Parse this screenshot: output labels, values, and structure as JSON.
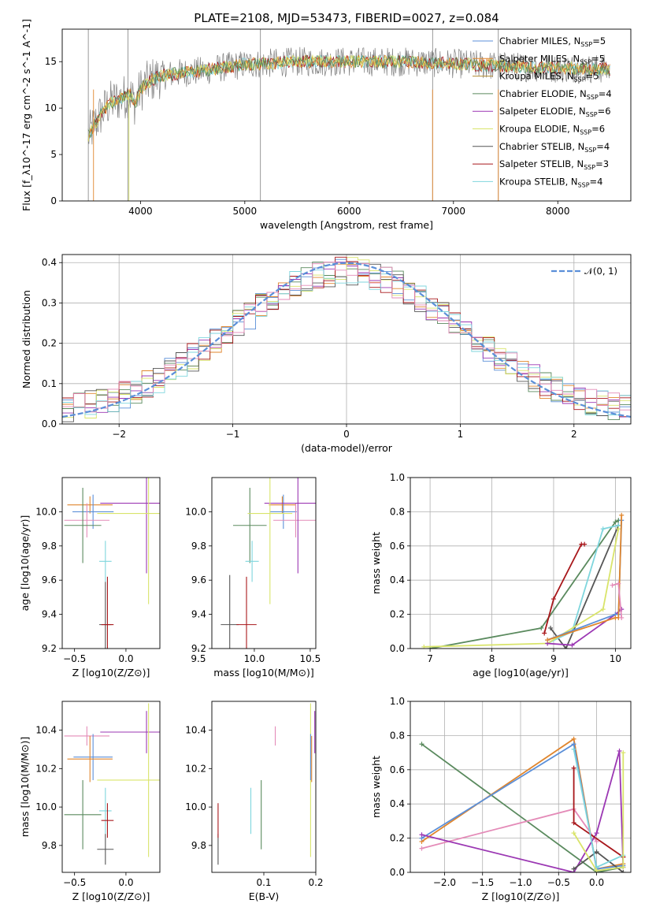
{
  "page_title": "PLATE=2108, MJD=53473, FIBERID=0027, z=0.084",
  "series_colors": {
    "Chabrier MILES": "#5b8fd8",
    "Salpeter MILES": "#e0862e",
    "Kroupa MILES": "#b08930",
    "Chabrier ELODIE": "#5a8a5e",
    "Salpeter ELODIE": "#9b37b3",
    "Kroupa ELODIE": "#d9e46a",
    "Chabrier STELIB": "#555555",
    "Salpeter STELIB": "#a8171b",
    "Kroupa STELIB": "#7fd6dd",
    "pink": "#e48bb8",
    "data": "#808080",
    "normal_curve": "#5b8fd8"
  },
  "chart_data": [
    {
      "id": "spectrum",
      "type": "line",
      "title": "PLATE=2108, MJD=53473, FIBERID=0027, z=0.084",
      "xlabel": "wavelength [Angstrom, rest frame]",
      "ylabel": "Flux [f_λ10^-17 erg cm^-2 s^-1 A^-1]",
      "xlim": [
        3250,
        8700
      ],
      "ylim": [
        0,
        18.5
      ],
      "xticks": [
        "4000",
        "5000",
        "6000",
        "7000",
        "8000"
      ],
      "yticks": [
        "0",
        "5",
        "10",
        "15"
      ],
      "grid": false,
      "legend_position": "right",
      "legend": [
        {
          "name": "Chabrier MILES",
          "nssp": "5"
        },
        {
          "name": "Salpeter MILES",
          "nssp": "5"
        },
        {
          "name": "Kroupa MILES",
          "nssp": "5"
        },
        {
          "name": "Chabrier ELODIE",
          "nssp": "4"
        },
        {
          "name": "Salpeter ELODIE",
          "nssp": "6"
        },
        {
          "name": "Kroupa ELODIE",
          "nssp": "6"
        },
        {
          "name": "Chabrier STELIB",
          "nssp": "4"
        },
        {
          "name": "Salpeter STELIB",
          "nssp": "3"
        },
        {
          "name": "Kroupa STELIB",
          "nssp": "4"
        }
      ],
      "continuum": [
        [
          3500,
          7
        ],
        [
          3600,
          9
        ],
        [
          3700,
          10.5
        ],
        [
          3800,
          11
        ],
        [
          3900,
          11.5
        ],
        [
          3950,
          10.5
        ],
        [
          4000,
          12
        ],
        [
          4100,
          13
        ],
        [
          4200,
          13.5
        ],
        [
          4400,
          13.8
        ],
        [
          4600,
          14
        ],
        [
          4800,
          14.4
        ],
        [
          5000,
          14.7
        ],
        [
          5200,
          14.8
        ],
        [
          5500,
          15
        ],
        [
          6000,
          15
        ],
        [
          6500,
          15
        ],
        [
          7000,
          14.8
        ],
        [
          7500,
          14.5
        ],
        [
          8000,
          14.3
        ],
        [
          8500,
          14.2
        ]
      ],
      "data_spikes": [
        [
          3500,
          0
        ],
        [
          3880,
          0
        ],
        [
          5150,
          0
        ],
        [
          6800,
          0
        ],
        [
          7430,
          0
        ]
      ]
    },
    {
      "id": "residuals",
      "type": "step",
      "xlabel": "(data-model)/error",
      "ylabel": "Normed distribution",
      "xlim": [
        -2.5,
        2.5
      ],
      "ylim": [
        0,
        0.42
      ],
      "xticks": [
        "−2",
        "−1",
        "0",
        "1",
        "2"
      ],
      "yticks": [
        "0.0",
        "0.1",
        "0.2",
        "0.3",
        "0.4"
      ],
      "grid": true,
      "legend_position": "top-right",
      "legend_label": "𝒩(0, 1)",
      "bins": [
        -2.5,
        2.5,
        50
      ]
    },
    {
      "id": "age-vs-Z",
      "type": "errorbar",
      "xlabel": "Z [log10(Z/Z⊙)]",
      "ylabel": "age  [log10(age/yr)]",
      "xlim": [
        -0.62,
        0.33
      ],
      "ylim": [
        9.2,
        10.2
      ],
      "xticks": [
        "−0.5",
        "0.0"
      ],
      "yticks": [
        "9.2",
        "9.4",
        "9.6",
        "9.8",
        "10.0"
      ],
      "points": [
        {
          "series": "Salpeter MILES",
          "x": -0.35,
          "y": 10.04,
          "xerr": 0.22,
          "yerr": 0.05
        },
        {
          "series": "Chabrier MILES",
          "x": -0.32,
          "y": 10.0,
          "xerr": 0.2,
          "yerr": 0.1
        },
        {
          "series": "pink",
          "x": -0.38,
          "y": 9.95,
          "xerr": 0.22,
          "yerr": 0.1
        },
        {
          "series": "Chabrier ELODIE",
          "x": -0.42,
          "y": 9.92,
          "xerr": 0.18,
          "yerr": 0.22
        },
        {
          "series": "Salpeter ELODIE",
          "x": 0.2,
          "y": 10.05,
          "xerr": 0.45,
          "yerr": 0.41
        },
        {
          "series": "Kroupa ELODIE",
          "x": 0.22,
          "y": 9.99,
          "xerr": 0.5,
          "yerr": 0.53
        },
        {
          "series": "Kroupa STELIB",
          "x": -0.2,
          "y": 9.71,
          "xerr": 0.06,
          "yerr": 0.12
        },
        {
          "series": "Chabrier STELIB",
          "x": -0.2,
          "y": 9.34,
          "xerr": 0.06,
          "yerr": 0.25
        },
        {
          "series": "Salpeter STELIB",
          "x": -0.18,
          "y": 9.34,
          "xerr": 0.06,
          "yerr": 0.28
        }
      ]
    },
    {
      "id": "age-vs-mass",
      "type": "errorbar",
      "xlabel": "mass [log10(M/M⊙)]",
      "ylabel": "",
      "xlim": [
        9.62,
        10.55
      ],
      "ylim": [
        9.2,
        10.2
      ],
      "xticks": [
        "9.5",
        "10.0",
        "10.5"
      ],
      "yticks": [
        "9.2",
        "9.4",
        "9.6",
        "9.8",
        "10.0"
      ],
      "points": [
        {
          "series": "Salpeter MILES",
          "x": 10.25,
          "y": 10.04,
          "xerr": 0.12,
          "yerr": 0.05
        },
        {
          "series": "Chabrier MILES",
          "x": 10.26,
          "y": 10.0,
          "xerr": 0.12,
          "yerr": 0.1
        },
        {
          "series": "pink",
          "x": 10.37,
          "y": 9.95,
          "xerr": 0.2,
          "yerr": 0.1
        },
        {
          "series": "Chabrier ELODIE",
          "x": 9.96,
          "y": 9.92,
          "xerr": 0.15,
          "yerr": 0.22
        },
        {
          "series": "Salpeter ELODIE",
          "x": 10.39,
          "y": 10.05,
          "xerr": 0.3,
          "yerr": 0.41
        },
        {
          "series": "Kroupa ELODIE",
          "x": 10.14,
          "y": 9.99,
          "xerr": 0.2,
          "yerr": 0.53
        },
        {
          "series": "Kroupa STELIB",
          "x": 9.98,
          "y": 9.71,
          "xerr": 0.06,
          "yerr": 0.12
        },
        {
          "series": "Chabrier STELIB",
          "x": 9.78,
          "y": 9.34,
          "xerr": 0.08,
          "yerr": 0.29
        },
        {
          "series": "Salpeter STELIB",
          "x": 9.93,
          "y": 9.34,
          "xerr": 0.09,
          "yerr": 0.28
        }
      ]
    },
    {
      "id": "mass-weight-vs-age",
      "type": "line",
      "xlabel": "age  [log10(age/yr)]",
      "ylabel": "mass weight",
      "xlim": [
        6.68,
        10.25
      ],
      "ylim": [
        0,
        1
      ],
      "xticks": [
        "7",
        "8",
        "9",
        "10"
      ],
      "yticks": [
        "0.0",
        "0.2",
        "0.4",
        "0.6",
        "0.8",
        "1.0"
      ],
      "grid": true,
      "series": [
        {
          "name": "Chabrier ELODIE",
          "x": [
            7.0,
            8.8,
            10.0,
            10.05
          ],
          "y": [
            0.0,
            0.12,
            0.74,
            0.75
          ]
        },
        {
          "name": "Salpeter STELIB",
          "x": [
            8.85,
            9.0,
            9.45,
            9.5
          ],
          "y": [
            0.09,
            0.29,
            0.61,
            0.61
          ]
        },
        {
          "name": "Chabrier STELIB",
          "x": [
            8.95,
            9.2,
            10.05,
            10.05
          ],
          "y": [
            0.12,
            0.0,
            0.72,
            0.72
          ]
        },
        {
          "name": "Kroupa STELIB",
          "x": [
            8.9,
            9.3,
            9.8,
            10.05
          ],
          "y": [
            0.03,
            0.1,
            0.7,
            0.72
          ]
        },
        {
          "name": "Kroupa ELODIE",
          "x": [
            6.9,
            8.9,
            9.8,
            10.05
          ],
          "y": [
            0.01,
            0.03,
            0.23,
            0.7
          ]
        },
        {
          "name": "Salpeter ELODIE",
          "x": [
            8.9,
            9.3,
            10.0,
            10.1
          ],
          "y": [
            0.03,
            0.02,
            0.2,
            0.23
          ]
        },
        {
          "name": "Chabrier MILES",
          "x": [
            8.9,
            10.0,
            10.05,
            10.1
          ],
          "y": [
            0.05,
            0.2,
            0.2,
            0.75
          ]
        },
        {
          "name": "Salpeter MILES",
          "x": [
            8.9,
            10.0,
            10.05,
            10.1
          ],
          "y": [
            0.05,
            0.18,
            0.18,
            0.78
          ]
        },
        {
          "name": "pink",
          "x": [
            9.95,
            10.05,
            10.1
          ],
          "y": [
            0.37,
            0.38,
            0.18
          ]
        }
      ]
    },
    {
      "id": "mass-vs-Z",
      "type": "errorbar",
      "xlabel": "Z [log10(Z/Z⊙)]",
      "ylabel": "mass [log10(M/M⊙)]",
      "xlim": [
        -0.62,
        0.33
      ],
      "ylim": [
        9.66,
        10.55
      ],
      "xticks": [
        "−0.5",
        "0.0"
      ],
      "yticks": [
        "9.8",
        "10.0",
        "10.2",
        "10.4"
      ],
      "points": [
        {
          "series": "pink",
          "x": -0.38,
          "y": 10.37,
          "xerr": 0.22,
          "yerr": 0.05
        },
        {
          "series": "Chabrier MILES",
          "x": -0.32,
          "y": 10.26,
          "xerr": 0.19,
          "yerr": 0.12
        },
        {
          "series": "Salpeter MILES",
          "x": -0.35,
          "y": 10.25,
          "xerr": 0.22,
          "yerr": 0.12
        },
        {
          "series": "Salpeter ELODIE",
          "x": 0.2,
          "y": 10.39,
          "xerr": 0.45,
          "yerr": 0.11
        },
        {
          "series": "Kroupa ELODIE",
          "x": 0.22,
          "y": 10.14,
          "xerr": 0.5,
          "yerr": 0.4
        },
        {
          "series": "Chabrier ELODIE",
          "x": -0.42,
          "y": 9.96,
          "xerr": 0.18,
          "yerr": 0.18
        },
        {
          "series": "Kroupa STELIB",
          "x": -0.2,
          "y": 9.98,
          "xerr": 0.06,
          "yerr": 0.12
        },
        {
          "series": "Salpeter STELIB",
          "x": -0.18,
          "y": 9.93,
          "xerr": 0.06,
          "yerr": 0.09
        },
        {
          "series": "Chabrier STELIB",
          "x": -0.2,
          "y": 9.78,
          "xerr": 0.08,
          "yerr": 0.08
        }
      ]
    },
    {
      "id": "mass-vs-EBV",
      "type": "errorbar",
      "xlabel": "E(B-V)",
      "ylabel": "",
      "xlim": [
        0.0,
        0.2
      ],
      "ylim": [
        9.66,
        10.55
      ],
      "xticks": [
        "0.1",
        "0.2"
      ],
      "yticks": [
        "9.8",
        "10.0",
        "10.2",
        "10.4"
      ],
      "points": [
        {
          "series": "Chabrier STELIB",
          "x": 0.012,
          "y": 9.78,
          "yerr": 0.08
        },
        {
          "series": "Salpeter STELIB",
          "x": 0.012,
          "y": 9.93,
          "yerr": 0.09
        },
        {
          "series": "Kroupa STELIB",
          "x": 0.075,
          "y": 9.98,
          "yerr": 0.12
        },
        {
          "series": "Chabrier ELODIE",
          "x": 0.095,
          "y": 9.96,
          "yerr": 0.18
        },
        {
          "series": "pink",
          "x": 0.122,
          "y": 10.37,
          "yerr": 0.05
        },
        {
          "series": "Kroupa ELODIE",
          "x": 0.19,
          "y": 10.14,
          "yerr": 0.4
        },
        {
          "series": "Chabrier MILES",
          "x": 0.19,
          "y": 10.26,
          "yerr": 0.12
        },
        {
          "series": "Salpeter MILES",
          "x": 0.192,
          "y": 10.25,
          "yerr": 0.12
        },
        {
          "series": "Salpeter ELODIE",
          "x": 0.198,
          "y": 10.39,
          "yerr": 0.11
        }
      ]
    },
    {
      "id": "mass-weight-vs-Z",
      "type": "line",
      "xlabel": "Z [log10(Z/Z⊙)]",
      "ylabel": "mass weight",
      "xlim": [
        -2.45,
        0.45
      ],
      "ylim": [
        0,
        1
      ],
      "xticks": [
        "−2.0",
        "−1.5",
        "−1.0",
        "−0.5",
        "0.0"
      ],
      "yticks": [
        "0.0",
        "0.2",
        "0.4",
        "0.6",
        "0.8",
        "1.0"
      ],
      "grid": true,
      "series": [
        {
          "name": "Chabrier ELODIE",
          "x": [
            -2.3,
            0.0,
            0.35
          ],
          "y": [
            0.75,
            0.0,
            0.03
          ]
        },
        {
          "name": "Salpeter MILES",
          "x": [
            -2.3,
            -0.3,
            0.0,
            0.35
          ],
          "y": [
            0.18,
            0.78,
            0.02,
            0.05
          ]
        },
        {
          "name": "Chabrier MILES",
          "x": [
            -2.3,
            -0.3,
            0.0,
            0.35
          ],
          "y": [
            0.2,
            0.75,
            0.02,
            0.04
          ]
        },
        {
          "name": "pink",
          "x": [
            -2.3,
            -0.3,
            0.0
          ],
          "y": [
            0.14,
            0.37,
            0.18
          ]
        },
        {
          "name": "Salpeter ELODIE",
          "x": [
            -2.3,
            -0.3,
            0.0,
            0.3,
            0.35
          ],
          "y": [
            0.22,
            0.0,
            0.23,
            0.71,
            0.03
          ]
        },
        {
          "name": "Salpeter STELIB",
          "x": [
            -0.3,
            -0.3,
            0.35,
            0.35
          ],
          "y": [
            0.61,
            0.29,
            0.09,
            0.09
          ]
        },
        {
          "name": "Chabrier STELIB",
          "x": [
            -0.3,
            0.0,
            0.35
          ],
          "y": [
            0.02,
            0.12,
            0.0
          ]
        },
        {
          "name": "Kroupa STELIB",
          "x": [
            -0.3,
            0.0,
            0.35
          ],
          "y": [
            0.72,
            0.03,
            0.1
          ]
        },
        {
          "name": "Kroupa ELODIE",
          "x": [
            -0.3,
            0.0,
            0.35,
            0.35
          ],
          "y": [
            0.23,
            0.01,
            0.03,
            0.7
          ]
        }
      ]
    }
  ]
}
